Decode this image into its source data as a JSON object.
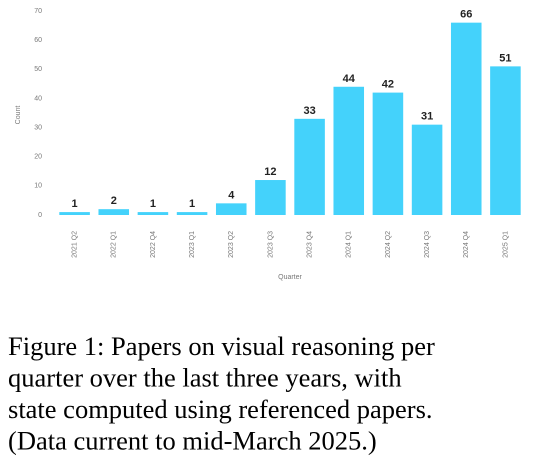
{
  "chart_data": {
    "type": "bar",
    "categories": [
      "2021 Q2",
      "2022 Q1",
      "2022 Q4",
      "2023 Q1",
      "2023 Q2",
      "2023 Q3",
      "2023 Q4",
      "2024 Q1",
      "2024 Q2",
      "2024 Q3",
      "2024 Q4",
      "2025 Q1"
    ],
    "values": [
      1,
      2,
      1,
      1,
      4,
      12,
      33,
      44,
      42,
      31,
      66,
      51
    ],
    "color": "#44d2fb",
    "ylim": [
      0,
      70
    ],
    "yticks": [
      0,
      10,
      20,
      30,
      40,
      50,
      60,
      70
    ],
    "xlabel": "Quarter",
    "ylabel": "Count",
    "grid": false
  },
  "caption": [
    "Figure 1: Papers on visual reasoning per",
    "quarter over the last three years, with",
    "state computed using referenced papers.",
    "(Data current to mid-March 2025.)"
  ]
}
